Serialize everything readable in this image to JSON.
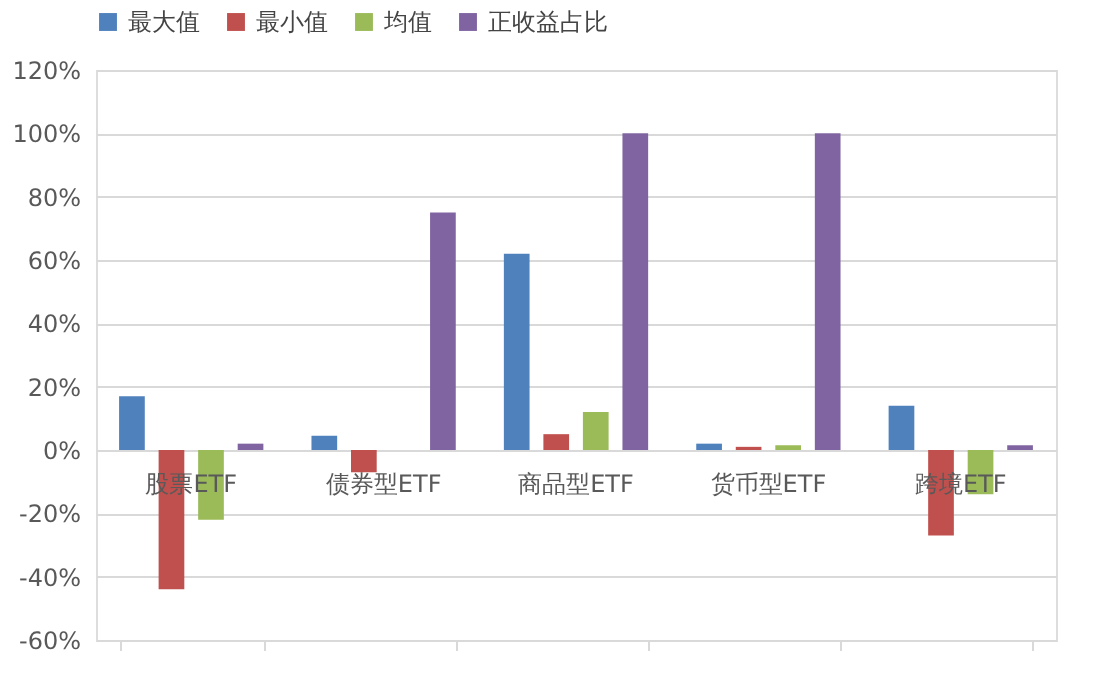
{
  "chart_data": {
    "type": "bar",
    "categories": [
      "股票ETF",
      "债券型ETF",
      "商品型ETF",
      "货币型ETF",
      "跨境ETF"
    ],
    "series": [
      {
        "name": "最大值",
        "color": "#4f81bd",
        "values": [
          17,
          4.5,
          62,
          2,
          14
        ]
      },
      {
        "name": "最小值",
        "color": "#c0504d",
        "values": [
          -44,
          -7,
          5,
          1,
          -27
        ]
      },
      {
        "name": "均值",
        "color": "#9bbb59",
        "values": [
          -22,
          null,
          12,
          1.5,
          -14
        ]
      },
      {
        "name": "正收益占比",
        "color": "#8064a2",
        "values": [
          2,
          75,
          100,
          100,
          1.5
        ]
      }
    ],
    "ylim": [
      -60,
      120
    ],
    "yticks": [
      {
        "value": -60,
        "label": "-60%"
      },
      {
        "value": -40,
        "label": "-40%"
      },
      {
        "value": -20,
        "label": "-20%"
      },
      {
        "value": 0,
        "label": "0%"
      },
      {
        "value": 20,
        "label": "20%"
      },
      {
        "value": 40,
        "label": "40%"
      },
      {
        "value": 60,
        "label": "60%"
      },
      {
        "value": 80,
        "label": "80%"
      },
      {
        "value": 100,
        "label": "100%"
      },
      {
        "value": 120,
        "label": "120%"
      }
    ],
    "grid": "y",
    "legend": "top"
  }
}
